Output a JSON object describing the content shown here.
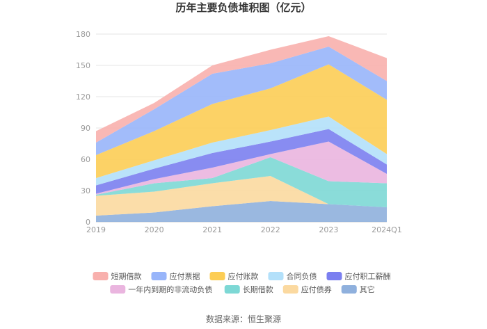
{
  "chart_data": {
    "type": "area",
    "stacked": true,
    "title": "历年主要负债堆积图（亿元）",
    "categories": [
      "2019",
      "2020",
      "2021",
      "2022",
      "2023",
      "2024Q1"
    ],
    "ylim": [
      0,
      180
    ],
    "yticks": [
      0,
      30,
      60,
      90,
      120,
      150,
      180
    ],
    "ytick_labels": [
      "0",
      "30",
      "60",
      "90",
      "120",
      "150",
      "180"
    ],
    "grid": true,
    "legend_position": "bottom",
    "series": [
      {
        "name": "其它",
        "color": "#8fb0dd",
        "values": [
          6,
          9,
          15,
          20,
          17,
          14
        ]
      },
      {
        "name": "应付债券",
        "color": "#fbd9a0",
        "values": [
          19,
          20,
          22,
          24,
          0,
          0
        ]
      },
      {
        "name": "长期借款",
        "color": "#7dd8d5",
        "values": [
          1,
          8,
          5,
          18,
          22,
          23
        ]
      },
      {
        "name": "一年内到期的非流动负债",
        "color": "#eab5df",
        "values": [
          1,
          4,
          10,
          3,
          38,
          9
        ]
      },
      {
        "name": "应付职工薪酬",
        "color": "#7b7ff0",
        "values": [
          8,
          10,
          14,
          12,
          12,
          9
        ]
      },
      {
        "name": "合同负债",
        "color": "#b3e0fa",
        "values": [
          7,
          8,
          10,
          11,
          12,
          10
        ]
      },
      {
        "name": "应付账款",
        "color": "#fccd55",
        "values": [
          22,
          28,
          37,
          40,
          50,
          52
        ]
      },
      {
        "name": "应付票据",
        "color": "#98b5fa",
        "values": [
          12,
          21,
          29,
          24,
          17,
          18
        ]
      },
      {
        "name": "短期借款",
        "color": "#f8b0ad",
        "values": [
          11,
          6,
          8,
          13,
          10,
          22
        ]
      }
    ],
    "legend_order": [
      "短期借款",
      "应付票据",
      "应付账款",
      "合同负债",
      "应付职工薪酬",
      "一年内到期的非流动负债",
      "长期借款",
      "应付债券",
      "其它"
    ]
  },
  "source_text": "数据来源：恒生聚源"
}
